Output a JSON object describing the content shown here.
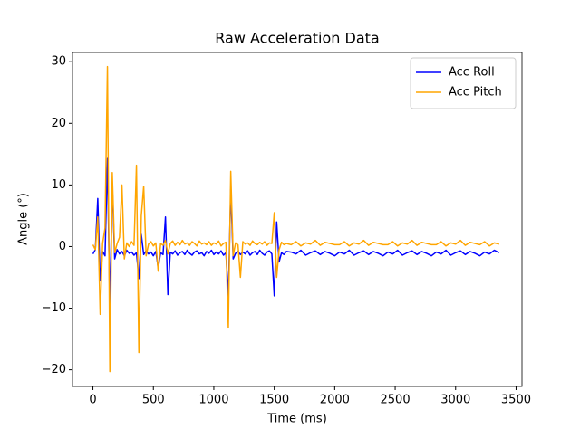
{
  "chart_data": {
    "type": "line",
    "title": "Raw Acceleration Data",
    "x_label": "Time (ms)",
    "y_label": "Angle (°)",
    "x": [
      0,
      20,
      40,
      60,
      80,
      100,
      120,
      140,
      160,
      180,
      200,
      220,
      240,
      260,
      280,
      300,
      320,
      340,
      360,
      380,
      400,
      420,
      440,
      460,
      480,
      500,
      520,
      540,
      560,
      580,
      600,
      620,
      640,
      660,
      680,
      700,
      720,
      740,
      760,
      780,
      800,
      820,
      840,
      860,
      880,
      900,
      920,
      940,
      960,
      980,
      1000,
      1020,
      1040,
      1060,
      1080,
      1100,
      1120,
      1140,
      1160,
      1180,
      1200,
      1220,
      1240,
      1260,
      1280,
      1300,
      1320,
      1340,
      1360,
      1380,
      1400,
      1420,
      1440,
      1460,
      1480,
      1500,
      1520,
      1540,
      1560,
      1580,
      1600,
      1640,
      1680,
      1720,
      1760,
      1800,
      1840,
      1880,
      1920,
      1960,
      2000,
      2040,
      2080,
      2120,
      2160,
      2200,
      2240,
      2280,
      2320,
      2360,
      2400,
      2440,
      2480,
      2520,
      2560,
      2600,
      2640,
      2680,
      2720,
      2760,
      2800,
      2840,
      2880,
      2920,
      2960,
      3000,
      3040,
      3080,
      3120,
      3160,
      3200,
      3240,
      3280,
      3320,
      3360
    ],
    "series": [
      {
        "name": "Acc Roll",
        "color": "#0000ff",
        "values": [
          -1.2,
          -0.5,
          7.8,
          -5.5,
          -0.8,
          -1.5,
          14.3,
          -10.4,
          10.2,
          -2,
          -0.5,
          -1.2,
          -0.8,
          -1.5,
          -0.6,
          -1.1,
          -0.9,
          -1.4,
          -1.0,
          -5.2,
          2.0,
          -1.3,
          -0.7,
          -1.2,
          -0.9,
          -1.5,
          -0.8,
          -3.5,
          -1.0,
          -1.3,
          4.8,
          -7.8,
          -0.9,
          -1.2,
          -0.7,
          -1.4,
          -1.0,
          -0.8,
          -1.3,
          -0.6,
          -1.1,
          -1.4,
          -0.9,
          -0.7,
          -1.2,
          -1.0,
          -1.5,
          -0.8,
          -1.1,
          -0.6,
          -1.3,
          -0.9,
          -1.2,
          -0.7,
          -1.4,
          -1.0,
          -8.5,
          9.3,
          -2.0,
          -1.1,
          -0.8,
          -1.3,
          -0.9,
          -1.2,
          -0.7,
          -1.4,
          -1.0,
          -0.8,
          -1.3,
          -0.6,
          -1.1,
          -1.4,
          -0.9,
          -0.7,
          -1.2,
          -8.0,
          4.0,
          -2.5,
          -1.0,
          -1.3,
          -0.8,
          -0.9,
          -1.2,
          -0.6,
          -1.4,
          -1.0,
          -0.7,
          -1.3,
          -0.8,
          -1.1,
          -1.5,
          -0.9,
          -1.2,
          -0.6,
          -1.4,
          -1.0,
          -0.7,
          -1.3,
          -0.8,
          -1.1,
          -1.5,
          -0.9,
          -1.2,
          -0.6,
          -1.4,
          -1.0,
          -0.7,
          -1.3,
          -0.8,
          -1.1,
          -1.5,
          -0.9,
          -1.2,
          -0.6,
          -1.4,
          -1.0,
          -0.7,
          -1.3,
          -0.8,
          -1.1,
          -1.5,
          -0.9,
          -1.2,
          -0.6,
          -1.0
        ]
      },
      {
        "name": "Acc Pitch",
        "color": "#ffa500",
        "values": [
          0.3,
          -0.5,
          4.8,
          -11.0,
          0.5,
          3.0,
          29.2,
          -20.3,
          12.0,
          -1.0,
          0.5,
          1.5,
          10.0,
          -2.0,
          0.6,
          0.0,
          0.8,
          0.2,
          13.2,
          -17.2,
          5.0,
          9.8,
          -1.5,
          0.4,
          0.8,
          0.1,
          0.6,
          -4.0,
          0.5,
          0.2,
          1.0,
          -1.2,
          0.5,
          0.9,
          0.2,
          0.7,
          0.3,
          1.0,
          0.4,
          0.6,
          0.2,
          0.8,
          0.5,
          0.1,
          0.9,
          0.4,
          0.6,
          0.3,
          0.8,
          0.2,
          0.6,
          0.4,
          0.9,
          0.1,
          0.5,
          0.7,
          -13.2,
          12.2,
          -1.5,
          0.6,
          0.3,
          -5.0,
          0.8,
          0.4,
          0.6,
          0.2,
          0.9,
          0.5,
          0.3,
          0.7,
          0.4,
          0.8,
          0.2,
          0.6,
          0.5,
          5.5,
          -5.0,
          -0.5,
          0.7,
          0.3,
          0.5,
          0.3,
          0.8,
          0.1,
          0.6,
          0.4,
          1.0,
          0.2,
          0.7,
          0.5,
          0.3,
          0.3,
          0.8,
          0.1,
          0.6,
          0.4,
          1.0,
          0.2,
          0.7,
          0.5,
          0.3,
          0.3,
          0.8,
          0.1,
          0.6,
          0.4,
          1.0,
          0.2,
          0.7,
          0.5,
          0.3,
          0.3,
          0.8,
          0.1,
          0.6,
          0.4,
          1.0,
          0.2,
          0.7,
          0.5,
          0.3,
          0.8,
          0.1,
          0.6,
          0.4
        ]
      }
    ],
    "xlim": [
      -169,
      3549
    ],
    "ylim": [
      -22.7,
      31.5
    ],
    "xticks": [
      0,
      500,
      1000,
      1500,
      2000,
      2500,
      3000,
      3500
    ],
    "yticks": [
      {
        "value": -20,
        "label": "−20"
      },
      {
        "value": -10,
        "label": "−10"
      },
      0,
      10,
      20,
      30
    ],
    "legend": "upper right",
    "grid": false
  }
}
